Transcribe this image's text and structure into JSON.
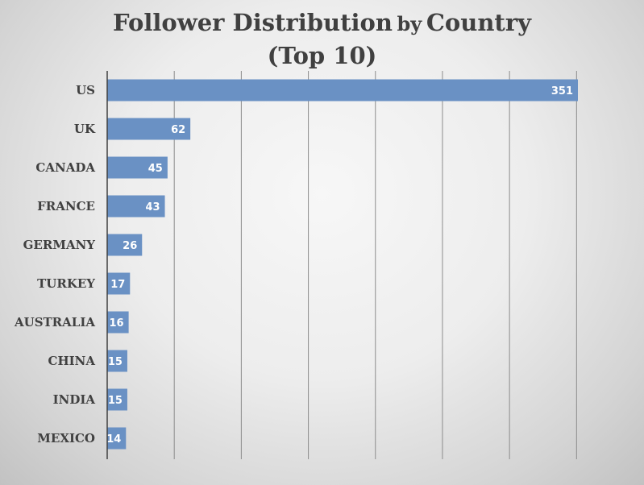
{
  "chart_data": {
    "type": "bar",
    "orientation": "horizontal",
    "title_line1_main": "Follower Distribution",
    "title_line1_small": "by",
    "title_line1_end": "Country",
    "title_line2": "(Top 10)",
    "categories": [
      "US",
      "UK",
      "CANADA",
      "FRANCE",
      "GERMANY",
      "TURKEY",
      "AUSTRALIA",
      "CHINA",
      "INDIA",
      "MEXICO"
    ],
    "values": [
      351,
      62,
      45,
      43,
      26,
      17,
      16,
      15,
      15,
      14
    ],
    "xlim": [
      0,
      400
    ],
    "gridlines": true,
    "bar_color": "#6a91c4",
    "grid_color": "#8c8c8c"
  }
}
